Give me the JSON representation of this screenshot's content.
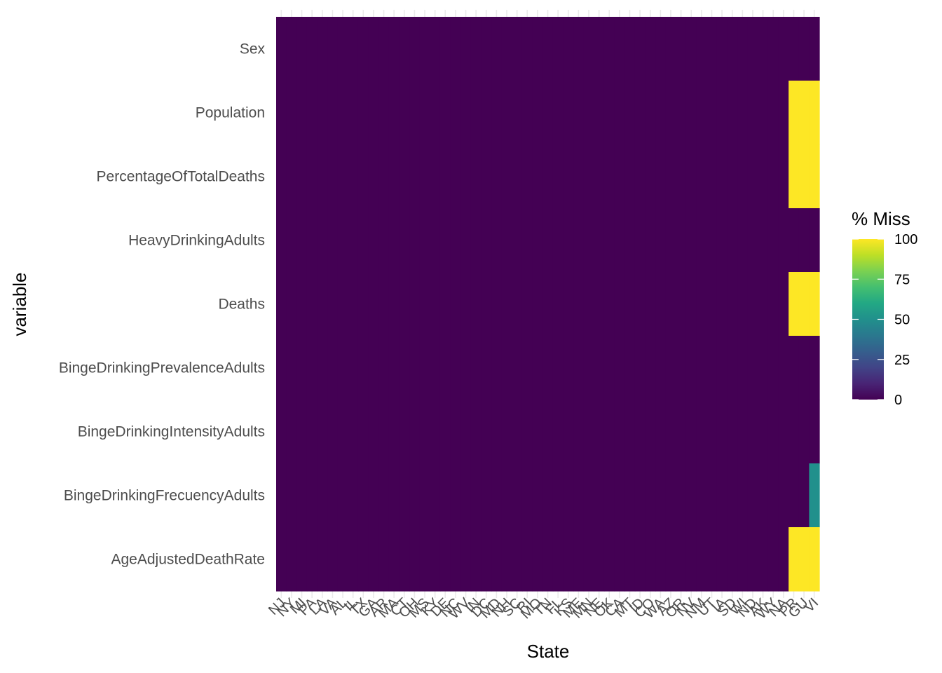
{
  "chart_data": {
    "type": "heatmap",
    "title": "",
    "xlabel": "State",
    "ylabel": "variable",
    "grid": true,
    "x": [
      "NJ",
      "NY",
      "MI",
      "PA",
      "LA",
      "VA",
      "AL",
      "IL",
      "TX",
      "GA",
      "AR",
      "MA",
      "CT",
      "OH",
      "MS",
      "KY",
      "DE",
      "NC",
      "WV",
      "IN",
      "DC",
      "MD",
      "NH",
      "SC",
      "RI",
      "MO",
      "TN",
      "FL",
      "KS",
      "ME",
      "MN",
      "NE",
      "OK",
      "CA",
      "MT",
      "ID",
      "CO",
      "WA",
      "AZ",
      "OR",
      "NV",
      "NM",
      "UT",
      "IA",
      "SD",
      "WI",
      "ND",
      "AK",
      "WY",
      "NA",
      "PR",
      "GU",
      "VI"
    ],
    "y": [
      "Sex",
      "Population",
      "PercentageOfTotalDeaths",
      "HeavyDrinkingAdults",
      "Deaths",
      "BingeDrinkingPrevalenceAdults",
      "BingeDrinkingIntensityAdults",
      "BingeDrinkingFrecuencyAdults",
      "AgeAdjustedDeathRate"
    ],
    "value_label": "% Miss",
    "value_range": [
      0,
      100
    ],
    "default_value": 0,
    "nonzero_cells": [
      {
        "variable": "Population",
        "states": [
          "PR",
          "GU",
          "VI"
        ],
        "value": 100
      },
      {
        "variable": "PercentageOfTotalDeaths",
        "states": [
          "PR",
          "GU",
          "VI"
        ],
        "value": 100
      },
      {
        "variable": "Deaths",
        "states": [
          "PR",
          "GU",
          "VI"
        ],
        "value": 100
      },
      {
        "variable": "AgeAdjustedDeathRate",
        "states": [
          "PR",
          "GU",
          "VI"
        ],
        "value": 100
      },
      {
        "variable": "BingeDrinkingFrecuencyAdults",
        "states": [
          "VI"
        ],
        "value": 50
      }
    ],
    "legend": {
      "title": "% Miss",
      "ticks": [
        100,
        75,
        50,
        25,
        0
      ],
      "placement": "right"
    },
    "colormap": [
      "#440154",
      "#482475",
      "#414487",
      "#355F8D",
      "#2A788E",
      "#21908C",
      "#22A884",
      "#44BF70",
      "#7AD151",
      "#BDDF26",
      "#FDE725"
    ]
  }
}
